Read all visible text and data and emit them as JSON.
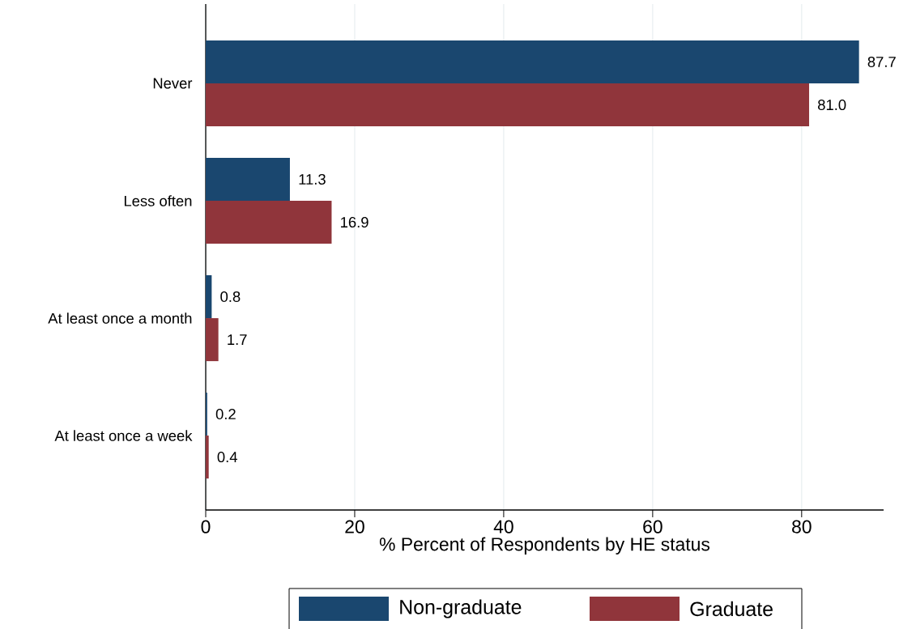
{
  "chart_data": {
    "type": "bar",
    "orientation": "horizontal",
    "xlabel": "% Percent of Respondents by HE status",
    "categories": [
      "Never",
      "Less often",
      "At least once a month",
      "At least once a week"
    ],
    "series": [
      {
        "name": "Non-graduate",
        "color": "#1a476f",
        "values": [
          87.7,
          11.3,
          0.8,
          0.2
        ],
        "value_labels": [
          "87.7",
          "11.3",
          "0.8",
          "0.2"
        ]
      },
      {
        "name": "Graduate",
        "color": "#90353b",
        "values": [
          81.0,
          16.9,
          1.7,
          0.4
        ],
        "value_labels": [
          "81.0",
          "16.9",
          "1.7",
          "0.4"
        ]
      }
    ],
    "xlim": [
      0,
      91
    ],
    "xticks": [
      0,
      20,
      40,
      60,
      80
    ],
    "grid": "x",
    "legend": "bottom"
  }
}
